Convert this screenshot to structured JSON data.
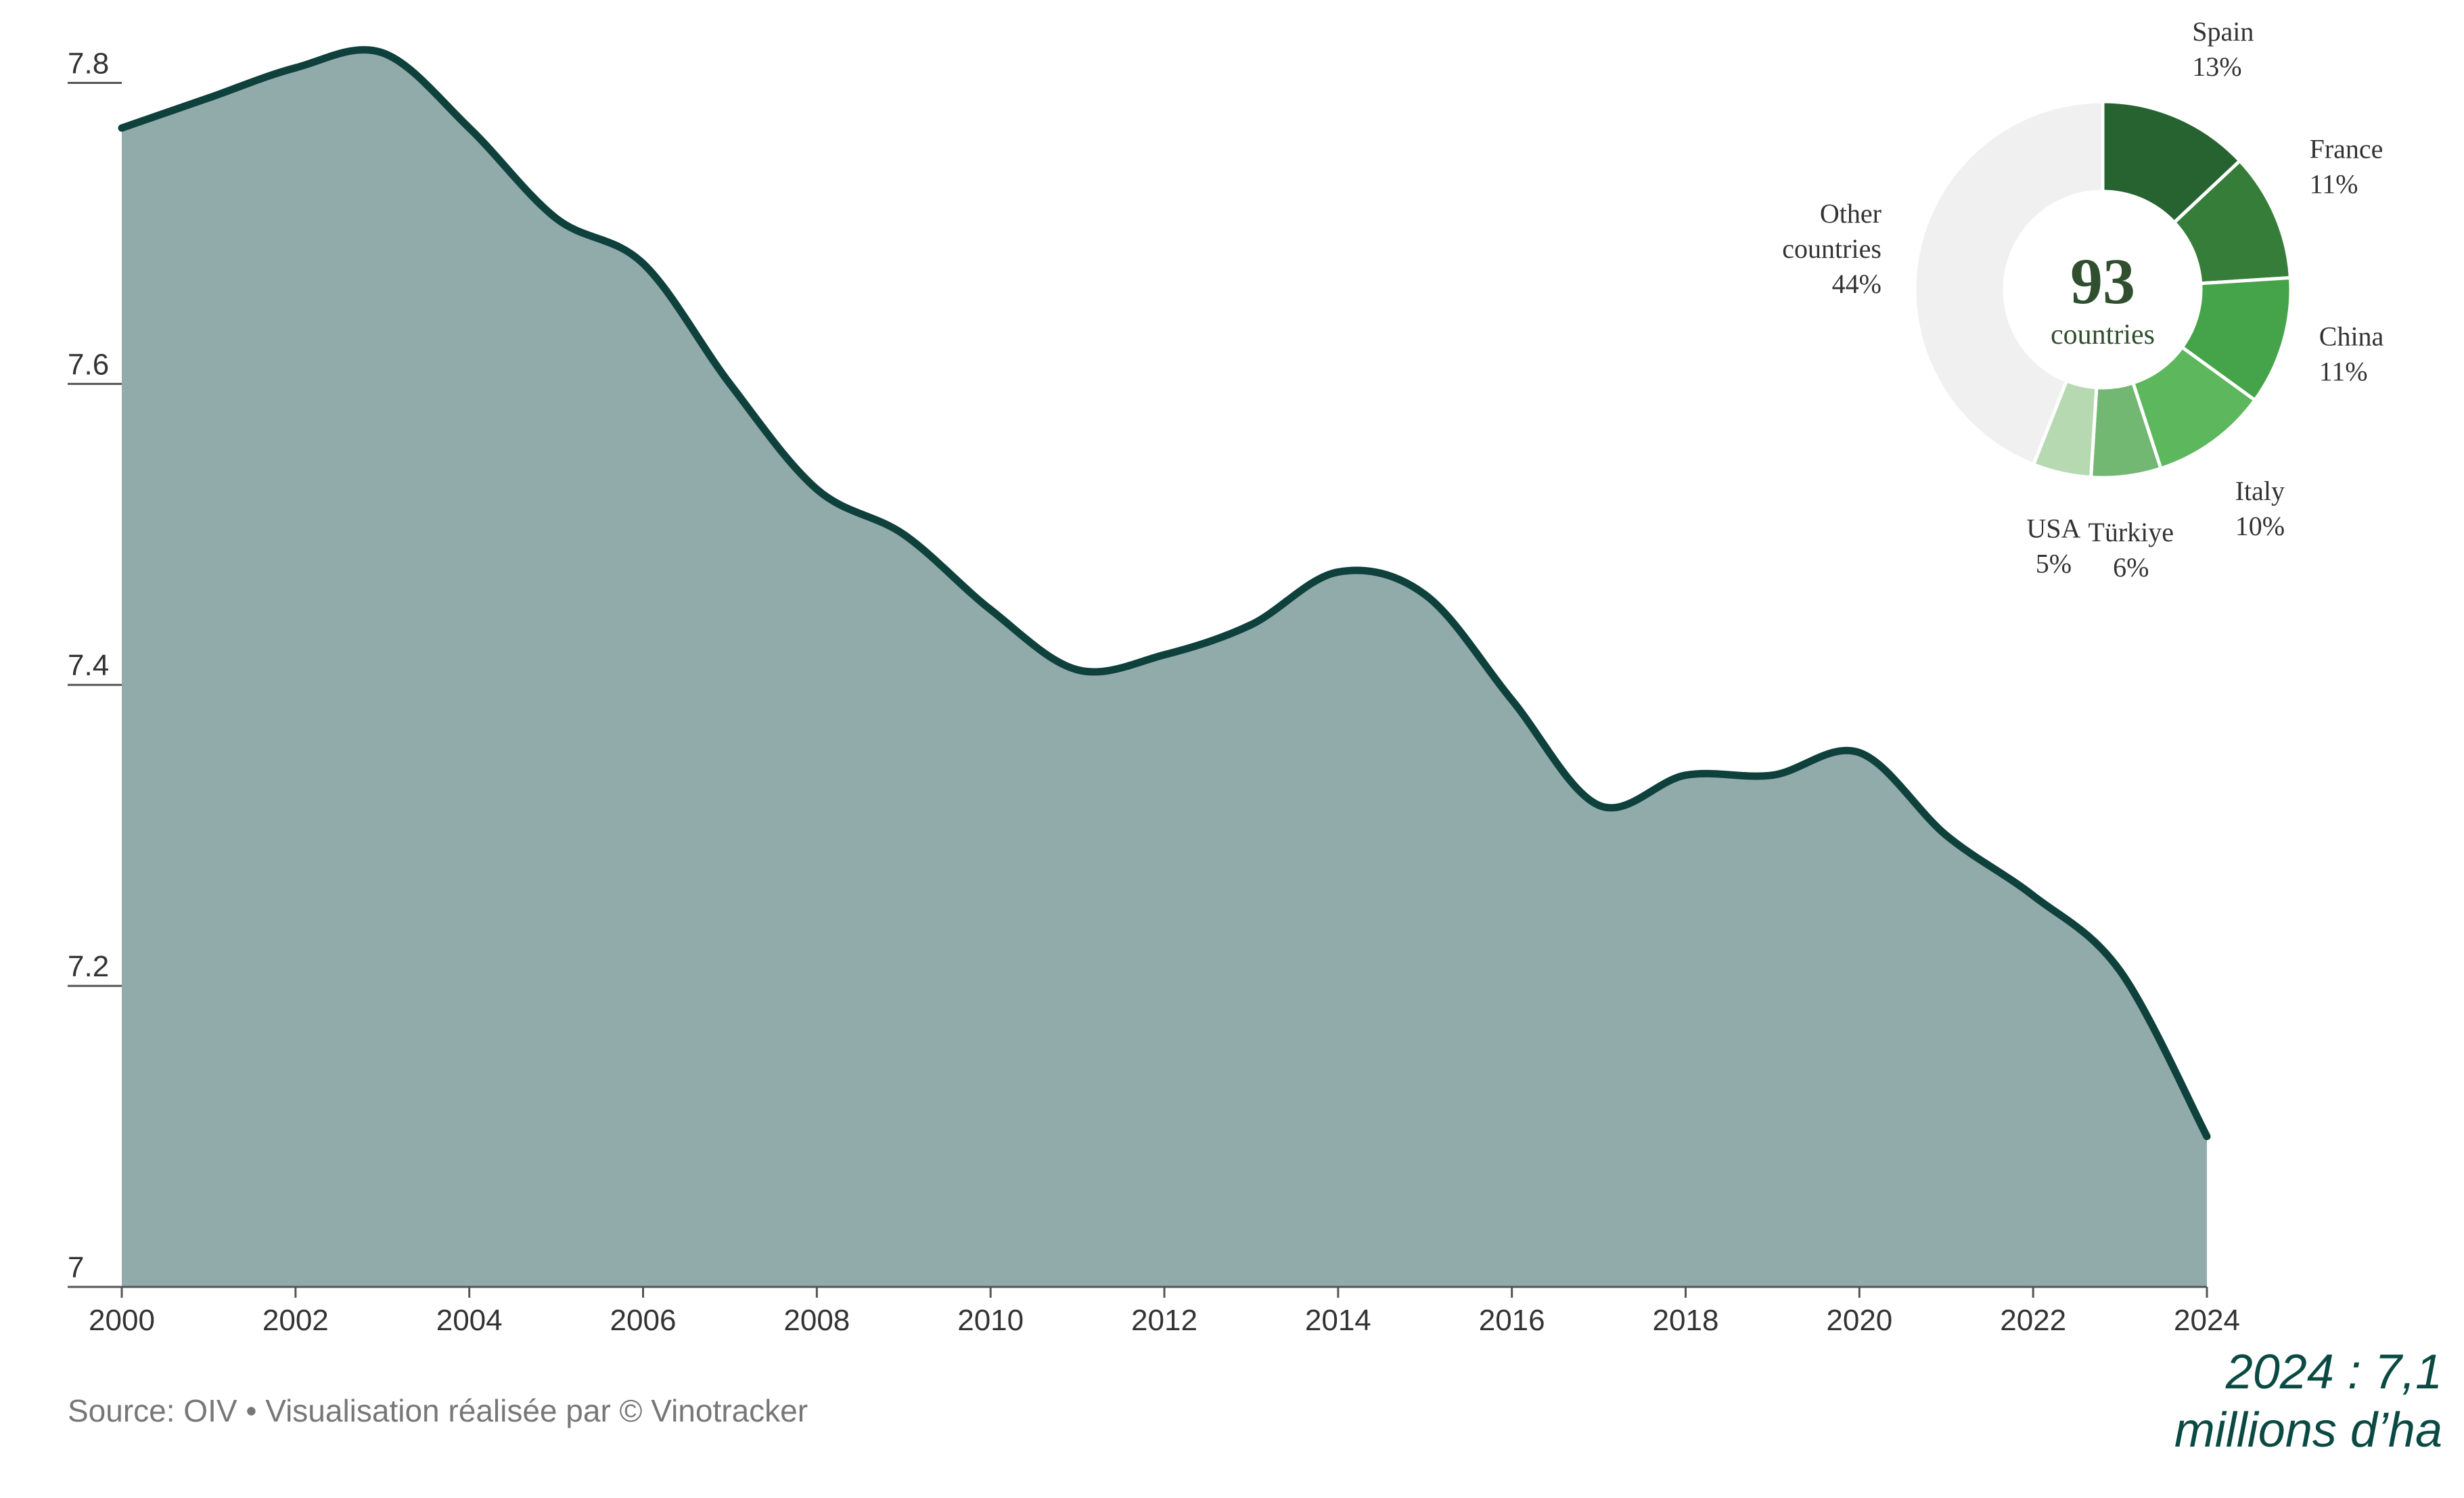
{
  "chart_data": [
    {
      "type": "area",
      "x": [
        2000,
        2001,
        2002,
        2003,
        2004,
        2005,
        2006,
        2007,
        2008,
        2009,
        2010,
        2011,
        2012,
        2013,
        2014,
        2015,
        2016,
        2017,
        2018,
        2019,
        2020,
        2021,
        2022,
        2023,
        2024
      ],
      "series": [
        {
          "values": [
            7.77,
            7.79,
            7.81,
            7.82,
            7.77,
            7.71,
            7.68,
            7.6,
            7.53,
            7.5,
            7.45,
            7.41,
            7.42,
            7.44,
            7.475,
            7.46,
            7.39,
            7.32,
            7.34,
            7.34,
            7.355,
            7.3,
            7.26,
            7.21,
            7.1
          ]
        }
      ],
      "x_ticks": [
        "2000",
        "2002",
        "2004",
        "2006",
        "2008",
        "2010",
        "2012",
        "2014",
        "2016",
        "2018",
        "2020",
        "2022",
        "2024"
      ],
      "y_ticks": [
        "7",
        "7.2",
        "7.4",
        "7.6",
        "7.8"
      ],
      "ylim": [
        7.0,
        7.82
      ],
      "xlim": [
        2000,
        2024
      ],
      "grid": false,
      "colors": {
        "fill": "#91abab",
        "line": "#0e403c"
      }
    },
    {
      "type": "pie",
      "categories": [
        "Spain",
        "France",
        "China",
        "Italy",
        "Türkiye",
        "USA",
        "Other countries"
      ],
      "values": [
        13,
        11,
        11,
        10,
        6,
        5,
        44
      ],
      "labels": [
        {
          "name": "Spain",
          "pct": "13%"
        },
        {
          "name": "France",
          "pct": "11%"
        },
        {
          "name": "China",
          "pct": "11%"
        },
        {
          "name": "Italy",
          "pct": "10%"
        },
        {
          "name": "Türkiye",
          "pct": "6%"
        },
        {
          "name": "USA",
          "pct": "5%"
        },
        {
          "name1": "Other",
          "name2": "countries",
          "pct": "44%"
        }
      ],
      "colors": [
        "#266330",
        "#367d39",
        "#45a449",
        "#5db75c",
        "#72b772",
        "#b6d9b2",
        "#f0f0f0"
      ],
      "center_value": "93",
      "center_label": "countries"
    }
  ],
  "source": "Source: OIV • Visualisation réalisée par © Vinotracker",
  "annotation": {
    "line1": "2024 : 7,1",
    "line2": "millions d’ha",
    "color": "#0b4a43"
  }
}
